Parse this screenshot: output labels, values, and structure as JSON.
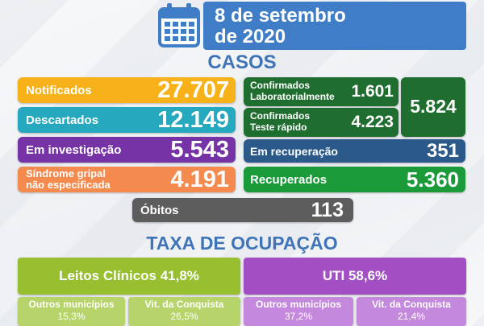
{
  "header": {
    "date_line1": "8 de setembro",
    "date_line2": "de 2020",
    "icon": "calendar-icon"
  },
  "casos": {
    "title": "CASOS",
    "notificados": {
      "label": "Notificados",
      "value": "27.707",
      "color": "#f7b21a"
    },
    "descartados": {
      "label": "Descartados",
      "value": "12.149",
      "color": "#26a9bf"
    },
    "investigacao": {
      "label": "Em investigação",
      "value": "5.543",
      "color": "#7533a6"
    },
    "sindrome": {
      "label_line1": "Síndrome gripal",
      "label_line2": "não especificada",
      "value": "4.191",
      "color": "#f58a4f"
    },
    "confirmados_lab": {
      "label_line1": "Confirmados",
      "label_line2": "Laboratorialmente",
      "value": "1.601",
      "color": "#1f6e2f"
    },
    "confirmados_rapido": {
      "label_line1": "Confirmados",
      "label_line2": "Teste rápido",
      "value": "4.223",
      "color": "#1f6e2f"
    },
    "confirmados_total": {
      "value": "5.824",
      "color": "#1f6e2f"
    },
    "recuperacao": {
      "label": "Em recuperação",
      "value": "351",
      "color": "#2b5a8a"
    },
    "recuperados": {
      "label": "Recuperados",
      "value": "5.360",
      "color": "#1b9a3a"
    },
    "obitos": {
      "label": "Óbitos",
      "value": "113",
      "color": "#5d5d5d"
    }
  },
  "ocupacao": {
    "title": "TAXA DE OCUPAÇÃO",
    "leitos": {
      "label": "Leitos Clínicos 41,8%",
      "color": "#97bf2f",
      "sub": [
        {
          "label": "Outros municípios",
          "value": "15,3%"
        },
        {
          "label": "Vit. da Conquista",
          "value": "26,5%"
        }
      ]
    },
    "uti": {
      "label": "UTI 58,6%",
      "color": "#a24fc4",
      "sub": [
        {
          "label": "Outros municípios",
          "value": "37,2%"
        },
        {
          "label": "Vit. da Conquista",
          "value": "21,4%"
        }
      ]
    }
  }
}
